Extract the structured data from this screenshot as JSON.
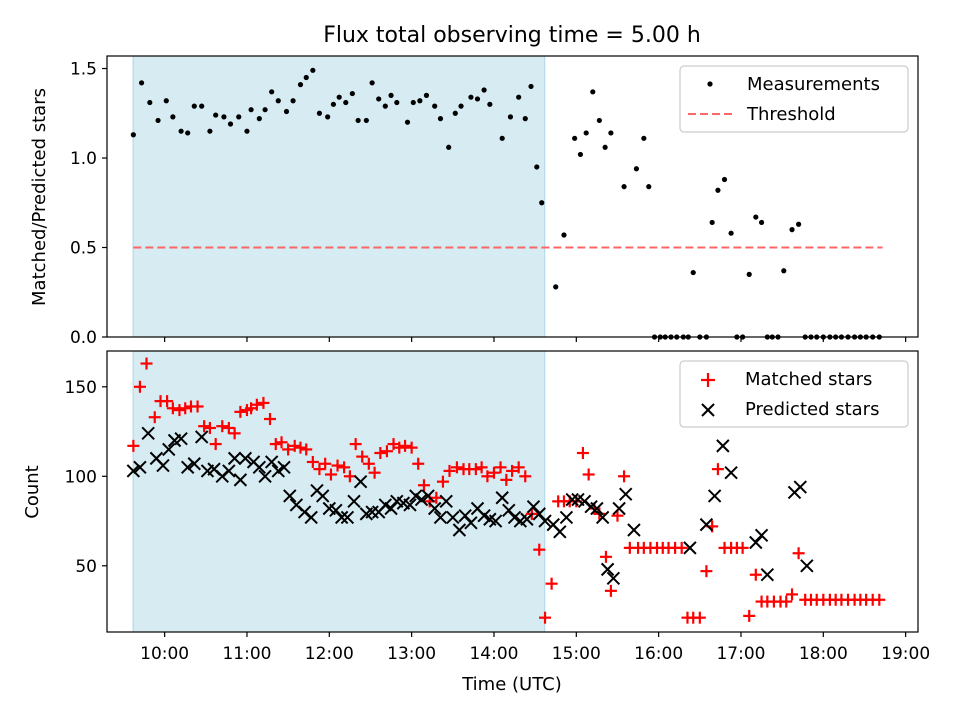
{
  "chart_data": {
    "type": "scatter",
    "title": "Flux total observing time = 5.00 h",
    "xlabel": "Time (UTC)",
    "x_unit": "hours UTC",
    "xlim": [
      9.3,
      19.15
    ],
    "xticks": [
      "10:00",
      "11:00",
      "12:00",
      "13:00",
      "14:00",
      "15:00",
      "16:00",
      "17:00",
      "18:00",
      "19:00"
    ],
    "shaded_interval": {
      "start": "09:37",
      "end": "14:37",
      "color": "#add8e6"
    },
    "panels": [
      {
        "name": "ratio",
        "ylabel": "Matched/Predicted stars",
        "ylim": [
          0,
          1.57
        ],
        "yticks": [
          "0.0",
          "0.5",
          "1.0",
          "1.5"
        ],
        "legend": {
          "position": "top-right",
          "entries": [
            "Measurements",
            "Threshold"
          ]
        },
        "threshold": {
          "name": "Threshold",
          "value": 0.5,
          "x_range": [
            9.62,
            18.72
          ],
          "color": "#ff6666",
          "style": "dashed"
        },
        "series": [
          {
            "name": "Measurements",
            "marker": "dot",
            "color": "#000000",
            "x": [
              9.62,
              9.72,
              9.82,
              9.92,
              10.02,
              10.1,
              10.2,
              10.28,
              10.36,
              10.45,
              10.55,
              10.62,
              10.72,
              10.8,
              10.9,
              11.0,
              11.05,
              11.15,
              11.22,
              11.3,
              11.38,
              11.48,
              11.56,
              11.65,
              11.72,
              11.8,
              11.88,
              11.98,
              12.05,
              12.12,
              12.2,
              12.28,
              12.35,
              12.45,
              12.52,
              12.6,
              12.68,
              12.75,
              12.82,
              12.95,
              13.02,
              13.1,
              13.18,
              13.28,
              13.35,
              13.45,
              13.53,
              13.6,
              13.72,
              13.8,
              13.88,
              13.95,
              14.1,
              14.2,
              14.3,
              14.38,
              14.45,
              14.52,
              14.58,
              14.75,
              14.85,
              14.98,
              15.05,
              15.12,
              15.2,
              15.28,
              15.35,
              15.42,
              15.58,
              15.73,
              15.82,
              15.88,
              15.95,
              16.02,
              16.08,
              16.15,
              16.22,
              16.3,
              16.36,
              16.42,
              16.5,
              16.58,
              16.65,
              16.72,
              16.8,
              16.88,
              16.95,
              17.02,
              17.1,
              17.18,
              17.25,
              17.32,
              17.38,
              17.45,
              17.52,
              17.62,
              17.7,
              17.78,
              17.85,
              17.92,
              18.0,
              18.08,
              18.15,
              18.22,
              18.3,
              18.38,
              18.45,
              18.52,
              18.6,
              18.68
            ],
            "y": [
              1.13,
              1.42,
              1.31,
              1.21,
              1.32,
              1.23,
              1.15,
              1.14,
              1.29,
              1.29,
              1.15,
              1.24,
              1.23,
              1.19,
              1.23,
              1.15,
              1.27,
              1.22,
              1.27,
              1.37,
              1.32,
              1.26,
              1.32,
              1.41,
              1.45,
              1.49,
              1.25,
              1.23,
              1.3,
              1.34,
              1.31,
              1.36,
              1.21,
              1.21,
              1.42,
              1.33,
              1.29,
              1.35,
              1.31,
              1.2,
              1.31,
              1.32,
              1.35,
              1.29,
              1.22,
              1.06,
              1.25,
              1.29,
              1.34,
              1.33,
              1.38,
              1.3,
              1.11,
              1.23,
              1.34,
              1.22,
              1.4,
              0.95,
              0.75,
              0.28,
              0.57,
              1.11,
              1.02,
              1.14,
              1.37,
              1.21,
              1.06,
              1.14,
              0.84,
              0.94,
              1.11,
              0.84,
              0.0,
              0.0,
              0.0,
              0.0,
              0.0,
              0.0,
              0.0,
              0.36,
              0.0,
              0.0,
              0.64,
              0.82,
              0.88,
              0.58,
              0.0,
              0.0,
              0.35,
              0.67,
              0.64,
              0.0,
              0.0,
              0.0,
              0.37,
              0.6,
              0.63,
              0.0,
              0.0,
              0.0,
              0.0,
              0.0,
              0.0,
              0.0,
              0.0,
              0.0,
              0.0,
              0.0,
              0.0,
              0.0
            ]
          }
        ]
      },
      {
        "name": "counts",
        "ylabel": "Count",
        "ylim": [
          13,
          170
        ],
        "yticks": [
          "50",
          "100",
          "150"
        ],
        "legend": {
          "position": "top-right",
          "entries": [
            "Matched stars",
            "Predicted stars"
          ]
        },
        "series": [
          {
            "name": "Matched stars",
            "marker": "plus",
            "color": "#ff0000",
            "x": [
              9.62,
              9.7,
              9.78,
              9.88,
              9.95,
              10.03,
              10.1,
              10.18,
              10.25,
              10.32,
              10.4,
              10.48,
              10.55,
              10.62,
              10.7,
              10.78,
              10.85,
              10.92,
              11.0,
              11.05,
              11.12,
              11.2,
              11.28,
              11.35,
              11.42,
              11.5,
              11.58,
              11.65,
              11.72,
              11.8,
              11.88,
              11.95,
              12.02,
              12.1,
              12.18,
              12.25,
              12.32,
              12.4,
              12.48,
              12.55,
              12.62,
              12.7,
              12.78,
              12.85,
              12.92,
              13.0,
              13.08,
              13.15,
              13.22,
              13.3,
              13.38,
              13.46,
              13.55,
              13.63,
              13.7,
              13.78,
              13.85,
              13.92,
              14.0,
              14.08,
              14.15,
              14.22,
              14.3,
              14.38,
              14.46,
              14.55,
              14.62,
              14.7,
              14.78,
              14.85,
              14.92,
              15.0,
              15.08,
              15.15,
              15.22,
              15.28,
              15.36,
              15.42,
              15.5,
              15.58,
              15.65,
              15.75,
              15.82,
              15.9,
              15.98,
              16.05,
              16.12,
              16.2,
              16.28,
              16.35,
              16.42,
              16.5,
              16.58,
              16.65,
              16.72,
              16.8,
              16.88,
              16.95,
              17.02,
              17.1,
              17.18,
              17.25,
              17.32,
              17.4,
              17.48,
              17.55,
              17.62,
              17.7,
              17.78,
              17.85,
              17.92,
              18.0,
              18.08,
              18.15,
              18.22,
              18.3,
              18.38,
              18.45,
              18.52,
              18.6,
              18.68
            ],
            "y": [
              117,
              150,
              163,
              133,
              142,
              142,
              138,
              137,
              138,
              139,
              139,
              128,
              127,
              118,
              128,
              127,
              124,
              136,
              137,
              138,
              140,
              141,
              132,
              118,
              119,
              115,
              117,
              116,
              115,
              108,
              104,
              107,
              101,
              106,
              105,
              100,
              118,
              111,
              107,
              102,
              113,
              114,
              118,
              116,
              117,
              116,
              107,
              95,
              86,
              88,
              97,
              103,
              105,
              104,
              104,
              104,
              105,
              100,
              102,
              105,
              98,
              103,
              105,
              100,
              79,
              59,
              21,
              40,
              86,
              86,
              86,
              86,
              113,
              101,
              82,
              79,
              55,
              36,
              78,
              100,
              60,
              60,
              60,
              60,
              60,
              60,
              60,
              60,
              60,
              21,
              21,
              21,
              47,
              72,
              104,
              60,
              60,
              60,
              60,
              22,
              45,
              30,
              30,
              30,
              30,
              30,
              34,
              57,
              31,
              31,
              31,
              31,
              31,
              31,
              31,
              31,
              31,
              31,
              31,
              31,
              31
            ]
          },
          {
            "name": "Predicted stars",
            "marker": "x",
            "color": "#000000",
            "x": [
              9.62,
              9.7,
              9.8,
              9.9,
              9.98,
              10.05,
              10.12,
              10.2,
              10.28,
              10.36,
              10.45,
              10.52,
              10.6,
              10.7,
              10.78,
              10.85,
              10.92,
              10.98,
              11.08,
              11.15,
              11.22,
              11.3,
              11.38,
              11.45,
              11.52,
              11.6,
              11.7,
              11.78,
              11.85,
              11.92,
              12.0,
              12.08,
              12.15,
              12.22,
              12.3,
              12.38,
              12.45,
              12.52,
              12.6,
              12.68,
              12.75,
              12.82,
              12.9,
              12.98,
              13.05,
              13.12,
              13.2,
              13.28,
              13.35,
              13.42,
              13.5,
              13.58,
              13.65,
              13.72,
              13.8,
              13.88,
              13.95,
              14.02,
              14.1,
              14.18,
              14.25,
              14.32,
              14.4,
              14.48,
              14.55,
              14.62,
              14.72,
              14.8,
              14.88,
              14.95,
              15.02,
              15.1,
              15.18,
              15.25,
              15.32,
              15.38,
              15.45,
              15.52,
              15.6,
              15.7,
              16.38,
              16.58,
              16.68,
              16.78,
              16.88,
              17.18,
              17.25,
              17.32,
              17.65,
              17.72,
              17.8
            ],
            "y": [
              103,
              105,
              124,
              110,
              106,
              115,
              120,
              121,
              105,
              107,
              122,
              103,
              104,
              100,
              103,
              110,
              98,
              110,
              108,
              105,
              100,
              108,
              103,
              105,
              89,
              84,
              80,
              77,
              92,
              89,
              82,
              81,
              77,
              77,
              86,
              97,
              79,
              80,
              80,
              84,
              82,
              86,
              85,
              84,
              89,
              87,
              89,
              82,
              77,
              86,
              77,
              70,
              78,
              74,
              82,
              78,
              76,
              75,
              88,
              81,
              77,
              75,
              76,
              83,
              79,
              75,
              73,
              69,
              77,
              87,
              87,
              86,
              83,
              82,
              77,
              48,
              43,
              82,
              90,
              70,
              60,
              73,
              89,
              117,
              102,
              63,
              67,
              45,
              91,
              94,
              50
            ]
          }
        ]
      }
    ]
  }
}
